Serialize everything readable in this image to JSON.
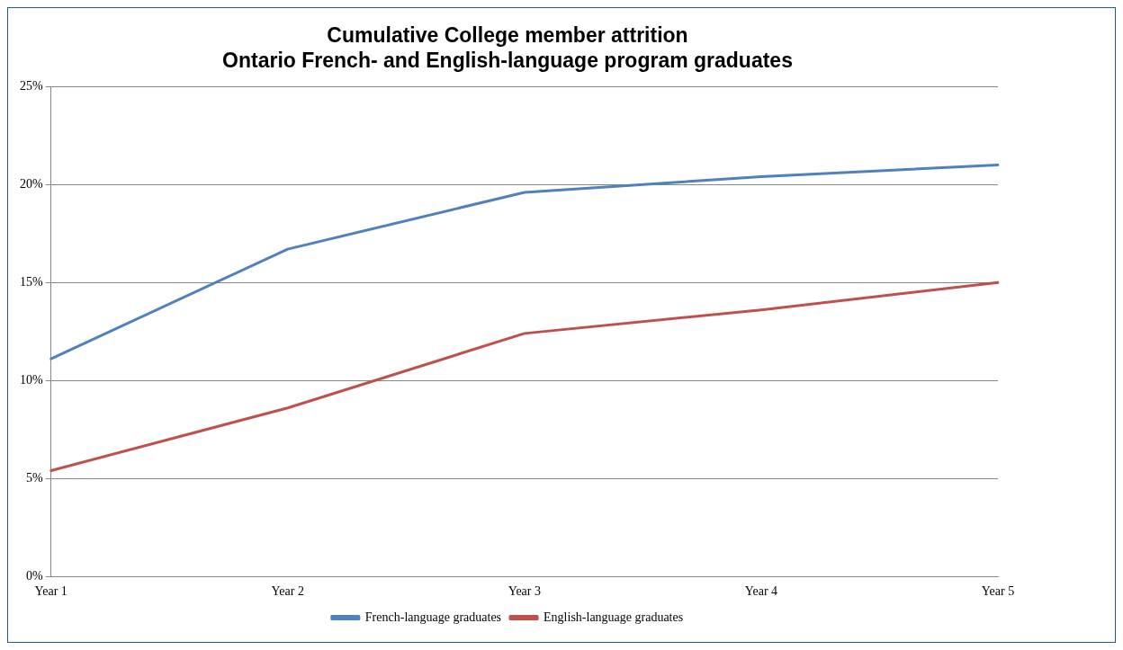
{
  "chart_data": {
    "type": "line",
    "title": "Cumulative College member attrition\nOntario French- and English-language program graduates",
    "categories": [
      "Year 1",
      "Year 2",
      "Year 3",
      "Year 4",
      "Year 5"
    ],
    "series": [
      {
        "name": "French-language graduates",
        "color": "#4f81bd",
        "values": [
          11.1,
          16.7,
          19.6,
          20.4,
          21.0
        ]
      },
      {
        "name": "English-language graduates",
        "color": "#c0504d",
        "values": [
          5.4,
          8.6,
          12.4,
          13.6,
          15.0
        ]
      }
    ],
    "ylim": [
      0,
      25
    ],
    "yticks": [
      {
        "value": 0,
        "label": "0%"
      },
      {
        "value": 5,
        "label": "5%"
      },
      {
        "value": 10,
        "label": "10%"
      },
      {
        "value": 15,
        "label": "15%"
      },
      {
        "value": 20,
        "label": "20%"
      },
      {
        "value": 25,
        "label": "25%"
      }
    ],
    "grid": "y",
    "legend": "bottom",
    "marker": "none",
    "line_style": "solid"
  }
}
